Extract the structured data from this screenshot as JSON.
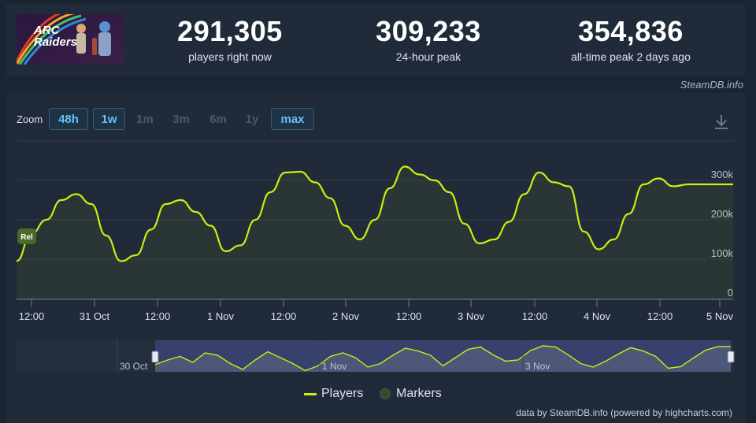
{
  "header": {
    "game_art": {
      "text_line1": "ARC",
      "text_line2": "Raiders"
    },
    "stats": [
      {
        "value": "291,305",
        "label": "players right now"
      },
      {
        "value": "309,233",
        "label": "24-hour peak"
      },
      {
        "value": "354,836",
        "label": "all-time peak 2 days ago"
      }
    ],
    "watermark": "SteamDB.info"
  },
  "toolbar": {
    "zoom_label": "Zoom",
    "zoom_options": [
      {
        "label": "48h",
        "enabled": true
      },
      {
        "label": "1w",
        "enabled": true
      },
      {
        "label": "1m",
        "enabled": false
      },
      {
        "label": "3m",
        "enabled": false
      },
      {
        "label": "6m",
        "enabled": false
      },
      {
        "label": "1y",
        "enabled": false
      },
      {
        "label": "max",
        "enabled": true
      }
    ]
  },
  "chart_data": {
    "type": "line",
    "series": [
      {
        "name": "Players",
        "color": "#c8f010",
        "x": [
          "30 Oct 03:00",
          "30 Oct 06:00",
          "30 Oct 09:00",
          "30 Oct 12:00",
          "30 Oct 15:00",
          "30 Oct 18:00",
          "30 Oct 21:00",
          "31 Oct 00:00",
          "31 Oct 03:00",
          "31 Oct 06:00",
          "31 Oct 09:00",
          "31 Oct 12:00",
          "31 Oct 15:00",
          "31 Oct 18:00",
          "31 Oct 21:00",
          "1 Nov 00:00",
          "1 Nov 03:00",
          "1 Nov 06:00",
          "1 Nov 09:00",
          "1 Nov 12:00",
          "1 Nov 15:00",
          "1 Nov 18:00",
          "1 Nov 21:00",
          "2 Nov 00:00",
          "2 Nov 03:00",
          "2 Nov 06:00",
          "2 Nov 09:00",
          "2 Nov 12:00",
          "2 Nov 15:00",
          "2 Nov 18:00",
          "2 Nov 21:00",
          "3 Nov 00:00",
          "3 Nov 03:00",
          "3 Nov 06:00",
          "3 Nov 09:00",
          "3 Nov 12:00",
          "3 Nov 15:00",
          "3 Nov 18:00",
          "3 Nov 21:00",
          "4 Nov 00:00",
          "4 Nov 03:00",
          "4 Nov 06:00",
          "4 Nov 09:00",
          "4 Nov 12:00",
          "4 Nov 15:00",
          "4 Nov 18:00",
          "4 Nov 21:00",
          "5 Nov 00:00",
          "5 Nov 03:00"
        ],
        "values": [
          95000,
          165000,
          200000,
          250000,
          265000,
          240000,
          160000,
          95000,
          110000,
          175000,
          240000,
          250000,
          220000,
          185000,
          120000,
          135000,
          200000,
          270000,
          320000,
          322000,
          295000,
          255000,
          185000,
          150000,
          200000,
          280000,
          335000,
          315000,
          300000,
          270000,
          190000,
          140000,
          150000,
          195000,
          265000,
          320000,
          295000,
          285000,
          170000,
          125000,
          150000,
          215000,
          290000,
          305000,
          285000,
          290000,
          290000,
          290000,
          290000
        ]
      }
    ],
    "markers": [
      {
        "label": "Rel",
        "x": "30 Oct 03:00"
      }
    ],
    "xlabels": [
      "12:00",
      "31 Oct",
      "12:00",
      "1 Nov",
      "12:00",
      "2 Nov",
      "12:00",
      "3 Nov",
      "12:00",
      "4 Nov",
      "12:00",
      "5 Nov"
    ],
    "yticks": [
      "0",
      "100k",
      "200k",
      "300k"
    ],
    "ylim": [
      0,
      380000
    ],
    "grid": true,
    "navigator": {
      "labels": [
        "30 Oct",
        "1 Nov",
        "3 Nov"
      ],
      "values": [
        210000,
        230000,
        245000,
        220000,
        260000,
        250000,
        215000,
        190000,
        230000,
        265000,
        240000,
        215000,
        185000,
        205000,
        245000,
        260000,
        240000,
        200000,
        215000,
        250000,
        280000,
        268000,
        250000,
        205000,
        240000,
        275000,
        285000,
        252000,
        225000,
        230000,
        270000,
        290000,
        285000,
        252000,
        215000,
        200000,
        225000,
        255000,
        282000,
        268000,
        245000,
        195000,
        202000,
        238000,
        272000,
        287000,
        287000
      ]
    }
  },
  "legend": {
    "players_label": "Players",
    "markers_label": "Markers"
  },
  "credits": "data by SteamDB.info (powered by highcharts.com)"
}
